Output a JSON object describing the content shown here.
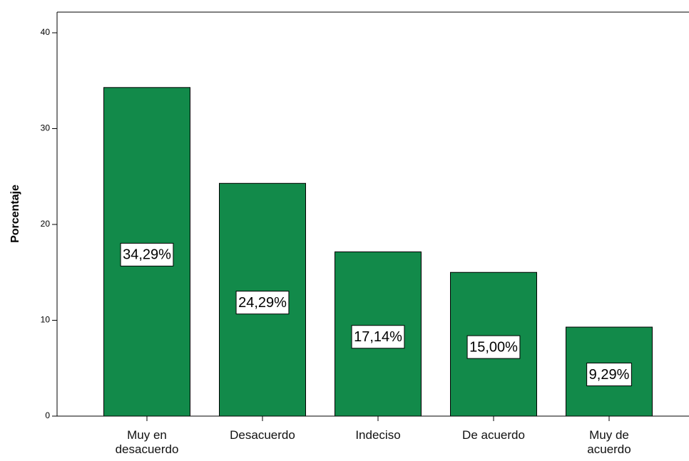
{
  "chart_data": {
    "type": "bar",
    "ylabel": "Porcentaje",
    "categories": [
      "Muy en desacuerdo",
      "Desacuerdo",
      "Indeciso",
      "De acuerdo",
      "Muy de acuerdo"
    ],
    "values": [
      34.29,
      24.29,
      17.14,
      15.0,
      9.29
    ],
    "value_labels": [
      "34,29%",
      "24,29%",
      "17,14%",
      "15,00%",
      "9,29%"
    ],
    "color": "#128a4a",
    "ylim": [
      0,
      40
    ],
    "yticks": [
      0,
      10,
      20,
      30,
      40
    ],
    "grid": false
  }
}
